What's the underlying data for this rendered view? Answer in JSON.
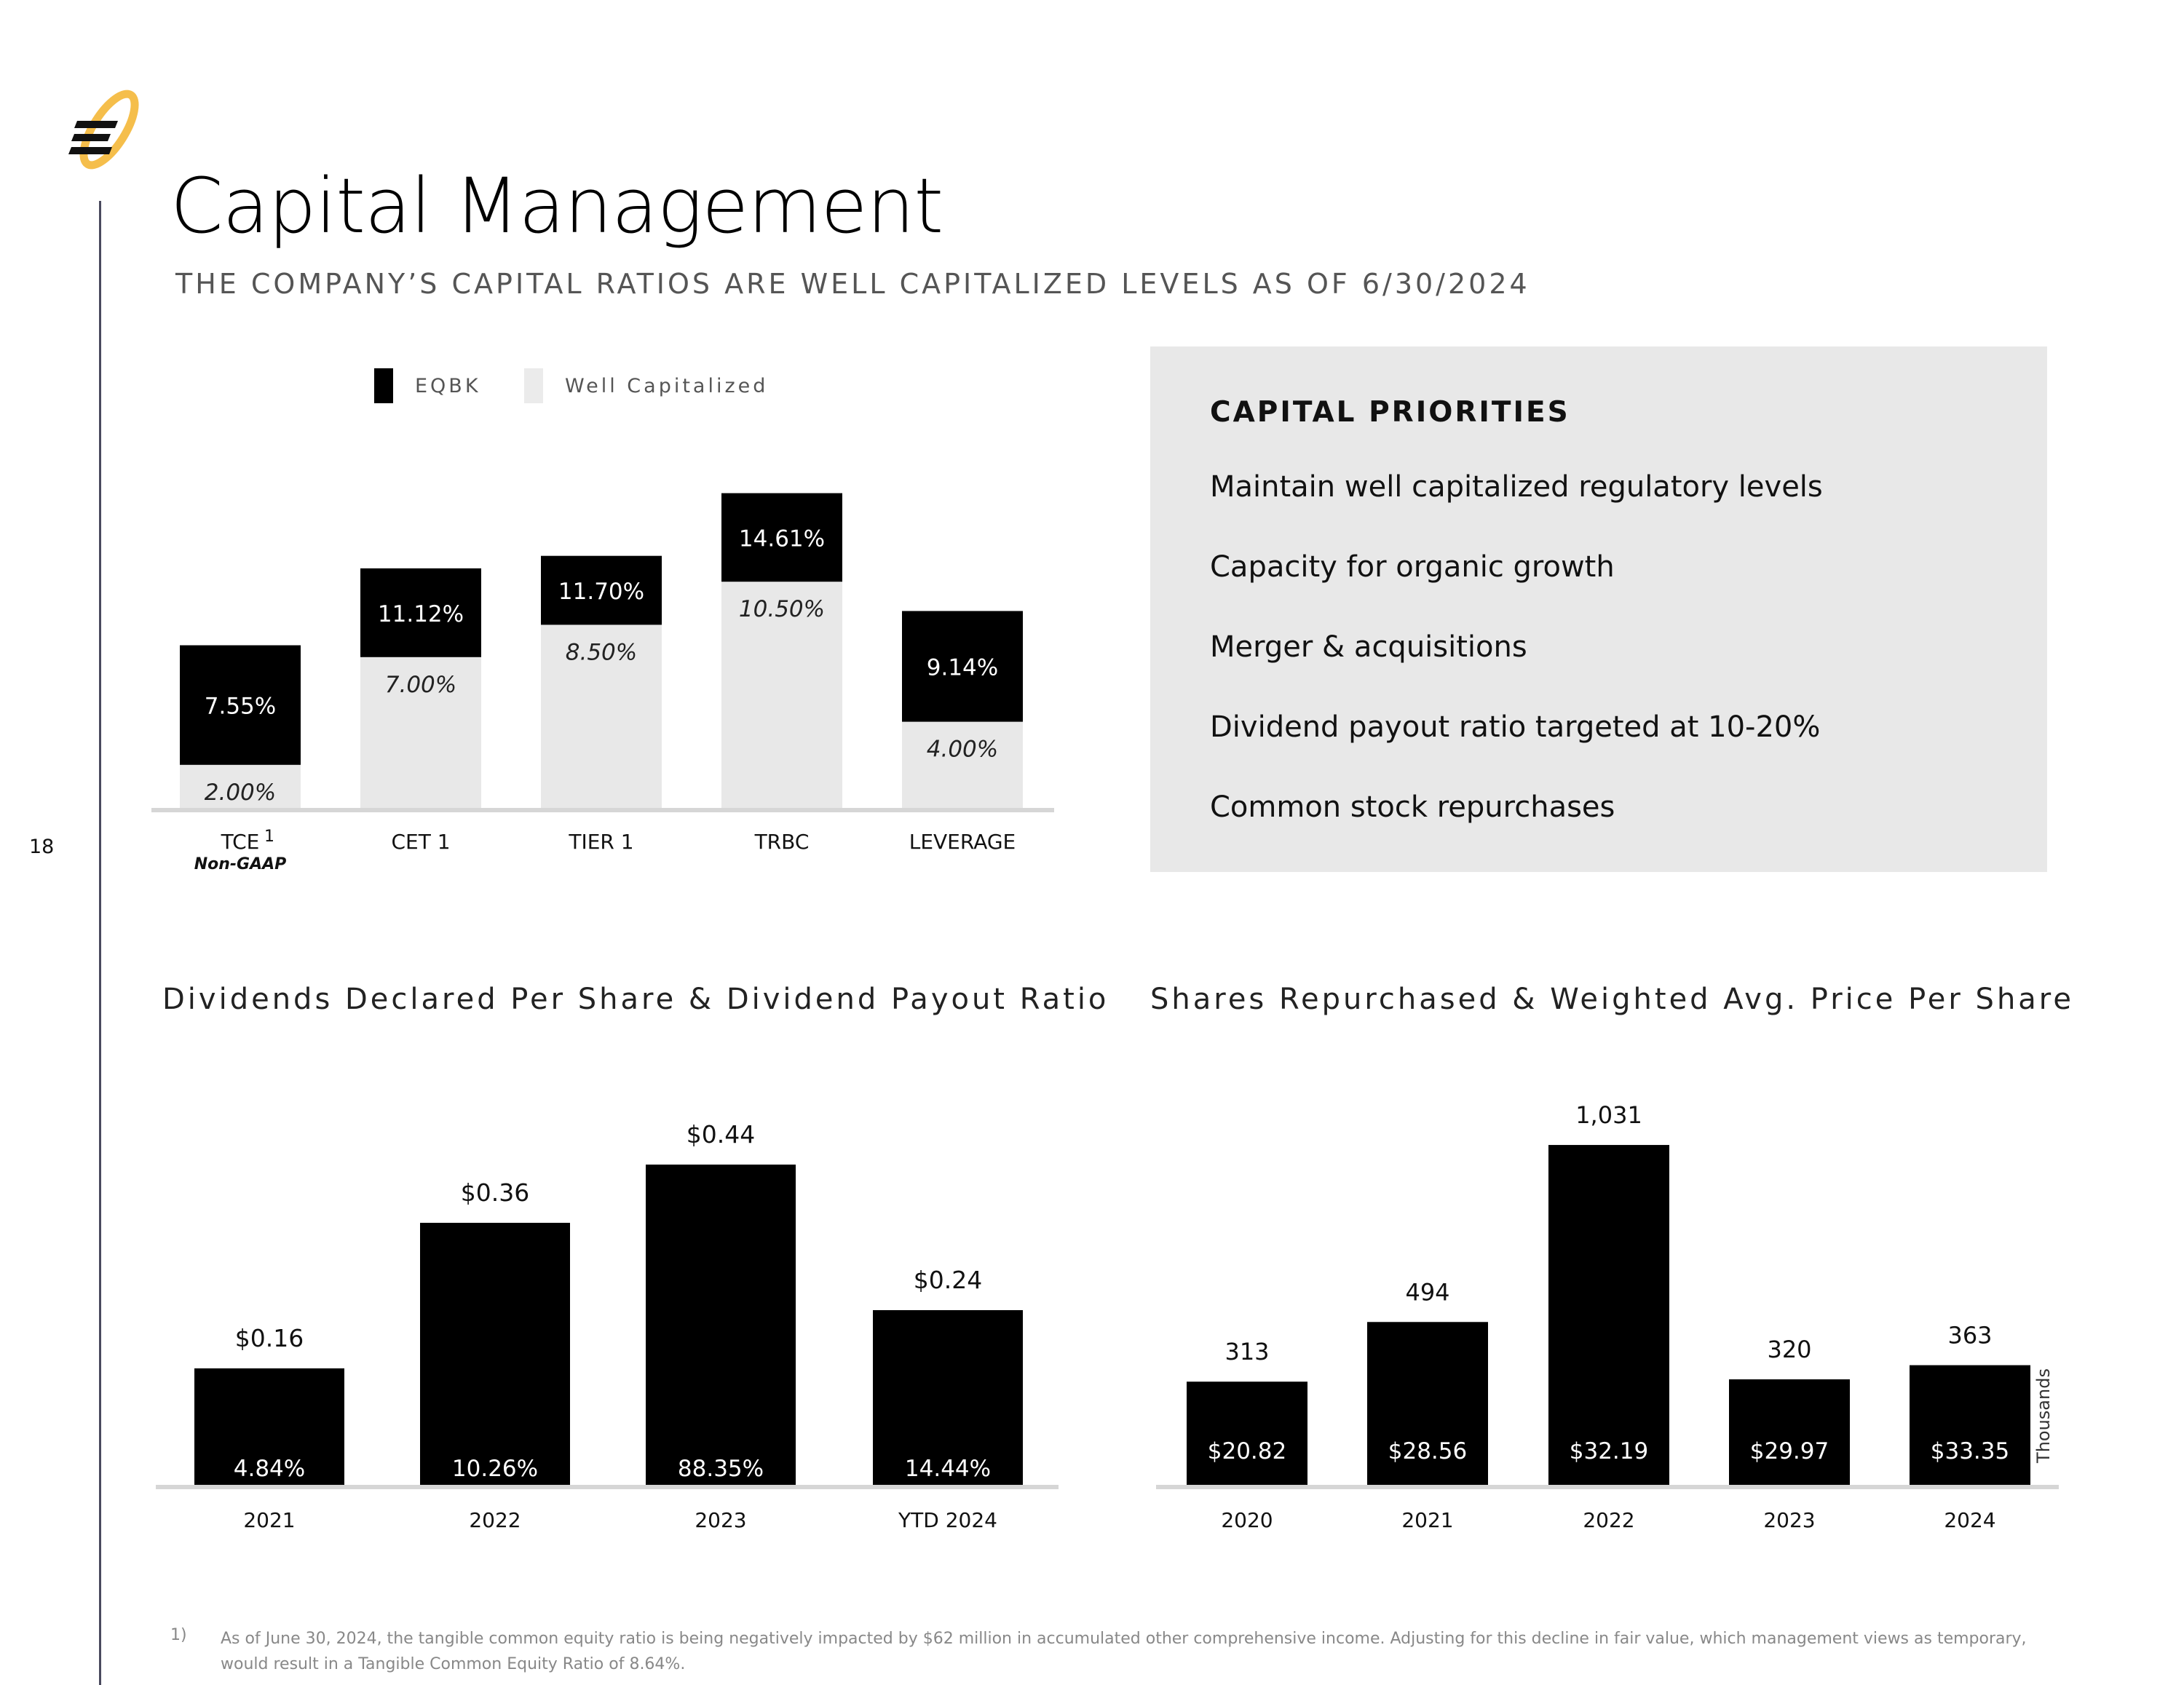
{
  "page": {
    "number": "18",
    "title": "Capital Management",
    "subtitle": "THE COMPANY’S CAPITAL RATIOS ARE WELL CAPITALIZED LEVELS AS OF 6/30/2024"
  },
  "logo": {
    "icon": "equity-bank-logo",
    "colors": {
      "ring": "#f5be4b",
      "mark": "#111111"
    }
  },
  "legend": {
    "items": [
      {
        "label": "EQBK",
        "color": "#000000"
      },
      {
        "label": "Well Capitalized",
        "color": "#e8e8e8"
      }
    ]
  },
  "priorities": {
    "heading": "CAPITAL PRIORITIES",
    "items": [
      "Maintain well capitalized regulatory levels",
      "Capacity for organic growth",
      "Merger & acquisitions",
      "Dividend payout ratio targeted at 10-20%",
      "Common stock repurchases"
    ]
  },
  "dividends": {
    "title": "Dividends Declared Per Share & Dividend Payout Ratio"
  },
  "repurchases": {
    "title": "Shares Repurchased & Weighted Avg. Price Per Share"
  },
  "chart_data": [
    {
      "type": "bar",
      "categories": [
        "TCE",
        "CET 1",
        "TIER 1",
        "TRBC",
        "LEVERAGE"
      ],
      "category_superscripts": [
        "1",
        "",
        "",
        "",
        ""
      ],
      "category_notes": [
        "Non-GAAP",
        "",
        "",
        "",
        ""
      ],
      "series": [
        {
          "name": "EQBK",
          "values": [
            7.55,
            11.12,
            11.7,
            14.61,
            9.14
          ],
          "labels": [
            "7.55%",
            "11.12%",
            "11.70%",
            "14.61%",
            "9.14%"
          ],
          "color": "#000000"
        },
        {
          "name": "Well Capitalized",
          "values": [
            2.0,
            7.0,
            8.5,
            10.5,
            4.0
          ],
          "labels": [
            "2.00%",
            "7.00%",
            "8.50%",
            "10.50%",
            "4.00%"
          ],
          "color": "#e8e8e8"
        }
      ],
      "ylim": [
        0,
        15
      ],
      "legend": "top"
    },
    {
      "type": "bar",
      "title": "Dividends Declared Per Share & Dividend Payout Ratio",
      "categories": [
        "2021",
        "2022",
        "2023",
        "YTD 2024"
      ],
      "values": [
        0.16,
        0.36,
        0.44,
        0.24
      ],
      "value_labels": [
        "$0.16",
        "$0.36",
        "$0.44",
        "$0.24"
      ],
      "inner_labels": [
        "4.84%",
        "10.26%",
        "88.35%",
        "14.44%"
      ],
      "ylim": [
        0,
        0.5
      ]
    },
    {
      "type": "bar",
      "title": "Shares Repurchased & Weighted Avg. Price Per Share",
      "categories": [
        "2020",
        "2021",
        "2022",
        "2023",
        "2024"
      ],
      "values": [
        313,
        494,
        1031,
        320,
        363
      ],
      "value_labels": [
        "313",
        "494",
        "1,031",
        "320",
        "363"
      ],
      "inner_labels": [
        "$20.82",
        "$28.56",
        "$32.19",
        "$29.97",
        "$33.35"
      ],
      "ylabel": "Thousands",
      "ylim": [
        0,
        1100
      ]
    }
  ],
  "footnote": {
    "number": "1)",
    "text": "As of June 30, 2024, the tangible common equity ratio is being negatively impacted by $62 million in accumulated other comprehensive income.  Adjusting for this decline in fair value, which management views as temporary, would result in a Tangible Common Equity Ratio of 8.64%."
  }
}
